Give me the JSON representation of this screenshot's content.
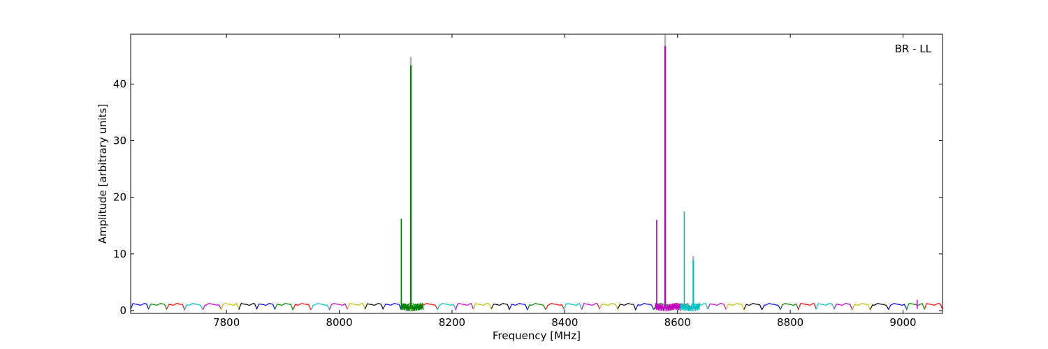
{
  "chart_data": {
    "type": "line",
    "title": "",
    "xlabel": "Frequency [MHz]",
    "ylabel": "Amplitude [arbitrary units]",
    "annotation": "BR - LL",
    "annotation_position": "top-right",
    "xlim": [
      7630,
      9070
    ],
    "ylim": [
      -0.5,
      48.8
    ],
    "x_ticks": [
      7800,
      8000,
      8200,
      8400,
      8600,
      8800,
      9000
    ],
    "y_ticks": [
      0,
      10,
      20,
      30,
      40
    ],
    "grid": false,
    "legend": "none",
    "baseline": {
      "channel_width_mhz": 32,
      "start_mhz": 7630,
      "end_mhz": 9070,
      "typical_level": 1.1,
      "edge_level": 0.2,
      "colors": [
        "#0000ff",
        "#008000",
        "#ff0000",
        "#00bfbf",
        "#bf00bf",
        "#bfbf00",
        "#000000"
      ]
    },
    "spikes": [
      {
        "x": 8110,
        "y": 16.2,
        "color": "#008000"
      },
      {
        "x": 8127,
        "y": 43.3,
        "color": "#008000",
        "ghost_y": 44.8
      },
      {
        "x": 8563,
        "y": 16.0,
        "color": "#bf00bf"
      },
      {
        "x": 8578,
        "y": 46.7,
        "color": "#bf00bf",
        "ghost_y": 48.8
      },
      {
        "x": 8612,
        "y": 17.5,
        "color": "#00bfbf"
      },
      {
        "x": 8628,
        "y": 8.9,
        "color": "#00bfbf",
        "ghost_y": 9.6
      },
      {
        "x": 9025,
        "y": 1.9,
        "color": "#bf00bf"
      }
    ],
    "noisy_bands": [
      {
        "x0": 8110,
        "x1": 8150,
        "color": "#008000"
      },
      {
        "x0": 8560,
        "x1": 8605,
        "color": "#bf00bf"
      },
      {
        "x0": 8605,
        "x1": 8640,
        "color": "#00bfbf"
      }
    ]
  }
}
